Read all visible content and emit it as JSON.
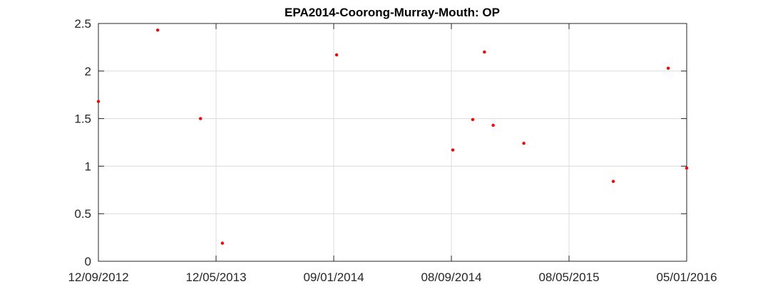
{
  "chart_data": {
    "type": "scatter",
    "title": "EPA2014-Coorong-Murray-Mouth: OP",
    "xlabel": "",
    "ylabel": "",
    "x_tick_labels": [
      "12/09/2012",
      "12/05/2013",
      "09/01/2014",
      "08/09/2014",
      "08/05/2015",
      "05/01/2016"
    ],
    "x_ticks": [
      "2012-09-12",
      "2013-05-12",
      "2014-01-09",
      "2014-09-08",
      "2015-05-08",
      "2016-01-05"
    ],
    "xlim": [
      "2012-09-12",
      "2016-01-05"
    ],
    "y_ticks": [
      0,
      0.5,
      1,
      1.5,
      2,
      2.5
    ],
    "y_tick_labels": [
      "0",
      "0.5",
      "1",
      "1.5",
      "2",
      "2.5"
    ],
    "ylim": [
      0,
      2.5
    ],
    "grid": true,
    "legend": "none",
    "marker_color": "#ff0000",
    "series": [
      {
        "points": [
          {
            "x": "2012-09-12",
            "y": 1.68
          },
          {
            "x": "2013-01-12",
            "y": 2.43
          },
          {
            "x": "2013-04-10",
            "y": 1.5
          },
          {
            "x": "2013-05-25",
            "y": 0.19
          },
          {
            "x": "2014-01-15",
            "y": 2.17
          },
          {
            "x": "2014-09-11",
            "y": 1.17
          },
          {
            "x": "2014-10-22",
            "y": 1.49
          },
          {
            "x": "2014-11-15",
            "y": 2.2
          },
          {
            "x": "2014-12-03",
            "y": 1.43
          },
          {
            "x": "2015-02-04",
            "y": 1.24
          },
          {
            "x": "2015-08-07",
            "y": 0.84
          },
          {
            "x": "2015-11-28",
            "y": 2.03
          },
          {
            "x": "2016-01-05",
            "y": 0.98
          }
        ]
      }
    ]
  }
}
